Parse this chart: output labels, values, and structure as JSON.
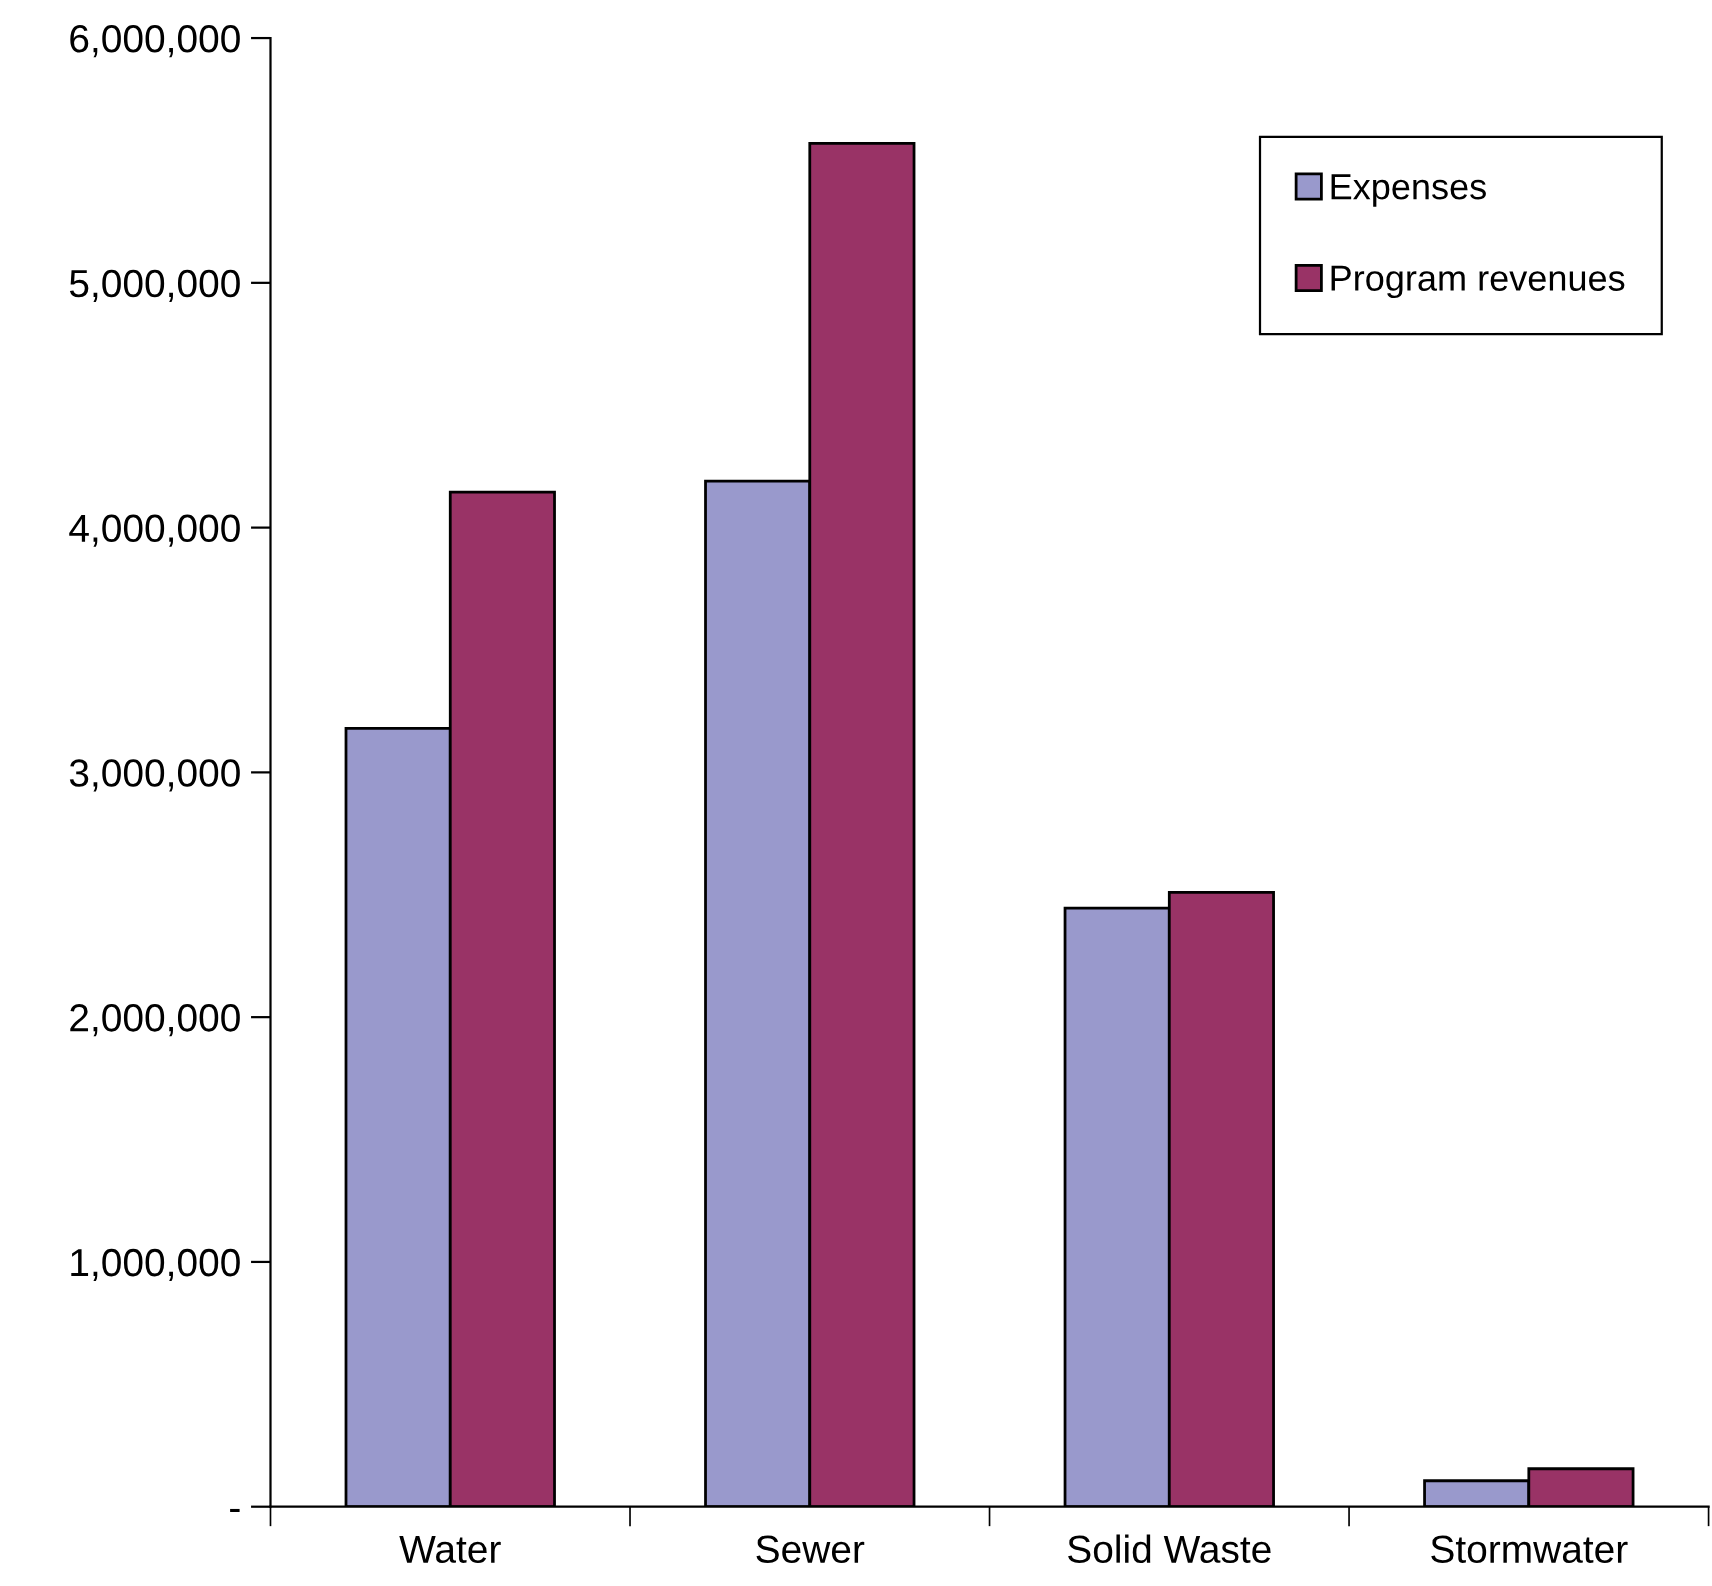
{
  "chart_data": {
    "type": "bar",
    "categories": [
      "Water",
      "Sewer",
      "Solid Waste",
      "Stormwater"
    ],
    "series": [
      {
        "name": "Expenses",
        "color": "#9999cc",
        "values": [
          3180000,
          4190000,
          2445000,
          106000
        ]
      },
      {
        "name": "Program revenues",
        "color": "#993366",
        "values": [
          4145000,
          5570000,
          2510000,
          155000
        ]
      }
    ],
    "ylim": [
      0,
      6000000
    ],
    "yticks": [
      {
        "value": 0,
        "label": "-"
      },
      {
        "value": 1000000,
        "label": "1,000,000"
      },
      {
        "value": 2000000,
        "label": "2,000,000"
      },
      {
        "value": 3000000,
        "label": "3,000,000"
      },
      {
        "value": 4000000,
        "label": "4,000,000"
      },
      {
        "value": 5000000,
        "label": "5,000,000"
      },
      {
        "value": 6000000,
        "label": "6,000,000"
      }
    ],
    "grid": false,
    "legend": "top right"
  }
}
